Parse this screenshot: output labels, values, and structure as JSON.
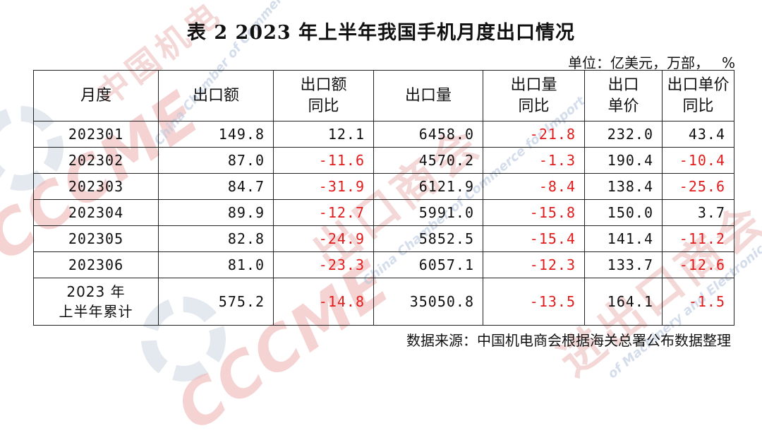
{
  "title": "表 2   2023 年上半年我国手机月度出口情况",
  "unit": {
    "label": "单位：亿美元，万部，",
    "pct": "%"
  },
  "headers": [
    [
      "月度"
    ],
    [
      "出口额"
    ],
    [
      "出口额",
      "同比"
    ],
    [
      "出口量"
    ],
    [
      "出口量",
      "同比"
    ],
    [
      "出口",
      "单价"
    ],
    [
      "出口单价",
      "同比"
    ]
  ],
  "rows": [
    {
      "month": "202301",
      "export_value": "149.8",
      "value_yoy": "12.1",
      "volume": "6458.0",
      "volume_yoy": "-21.8",
      "unit_price": "232.0",
      "price_yoy": "43.4"
    },
    {
      "month": "202302",
      "export_value": "87.0",
      "value_yoy": "-11.6",
      "volume": "4570.2",
      "volume_yoy": "-1.3",
      "unit_price": "190.4",
      "price_yoy": "-10.4"
    },
    {
      "month": "202303",
      "export_value": "84.7",
      "value_yoy": "-31.9",
      "volume": "6121.9",
      "volume_yoy": "-8.4",
      "unit_price": "138.4",
      "price_yoy": "-25.6"
    },
    {
      "month": "202304",
      "export_value": "89.9",
      "value_yoy": "-12.7",
      "volume": "5991.0",
      "volume_yoy": "-15.8",
      "unit_price": "150.0",
      "price_yoy": "3.7"
    },
    {
      "month": "202305",
      "export_value": "82.8",
      "value_yoy": "-24.9",
      "volume": "5852.5",
      "volume_yoy": "-15.4",
      "unit_price": "141.4",
      "price_yoy": "-11.2"
    },
    {
      "month": "202306",
      "export_value": "81.0",
      "value_yoy": "-23.3",
      "volume": "6057.1",
      "volume_yoy": "-12.3",
      "unit_price": "133.7",
      "price_yoy": "-12.6"
    }
  ],
  "cumulative": {
    "label_line1": "2023 年",
    "label_line2": "上半年累计",
    "export_value": "575.2",
    "value_yoy": "-14.8",
    "volume": "35050.8",
    "volume_yoy": "-13.5",
    "unit_price": "164.1",
    "price_yoy": "-1.5"
  },
  "source": "数据来源：中国机电商会根据海关总署公布数据整理",
  "watermark": {
    "cn": "中国机电产品进出口商会",
    "en": "China Chamber of Commerce for Import and Export of Machinery and Electronic Products",
    "logo": "CCCME"
  },
  "colors": {
    "negative": "#e31b1b",
    "text": "#111111",
    "border": "#222222"
  }
}
